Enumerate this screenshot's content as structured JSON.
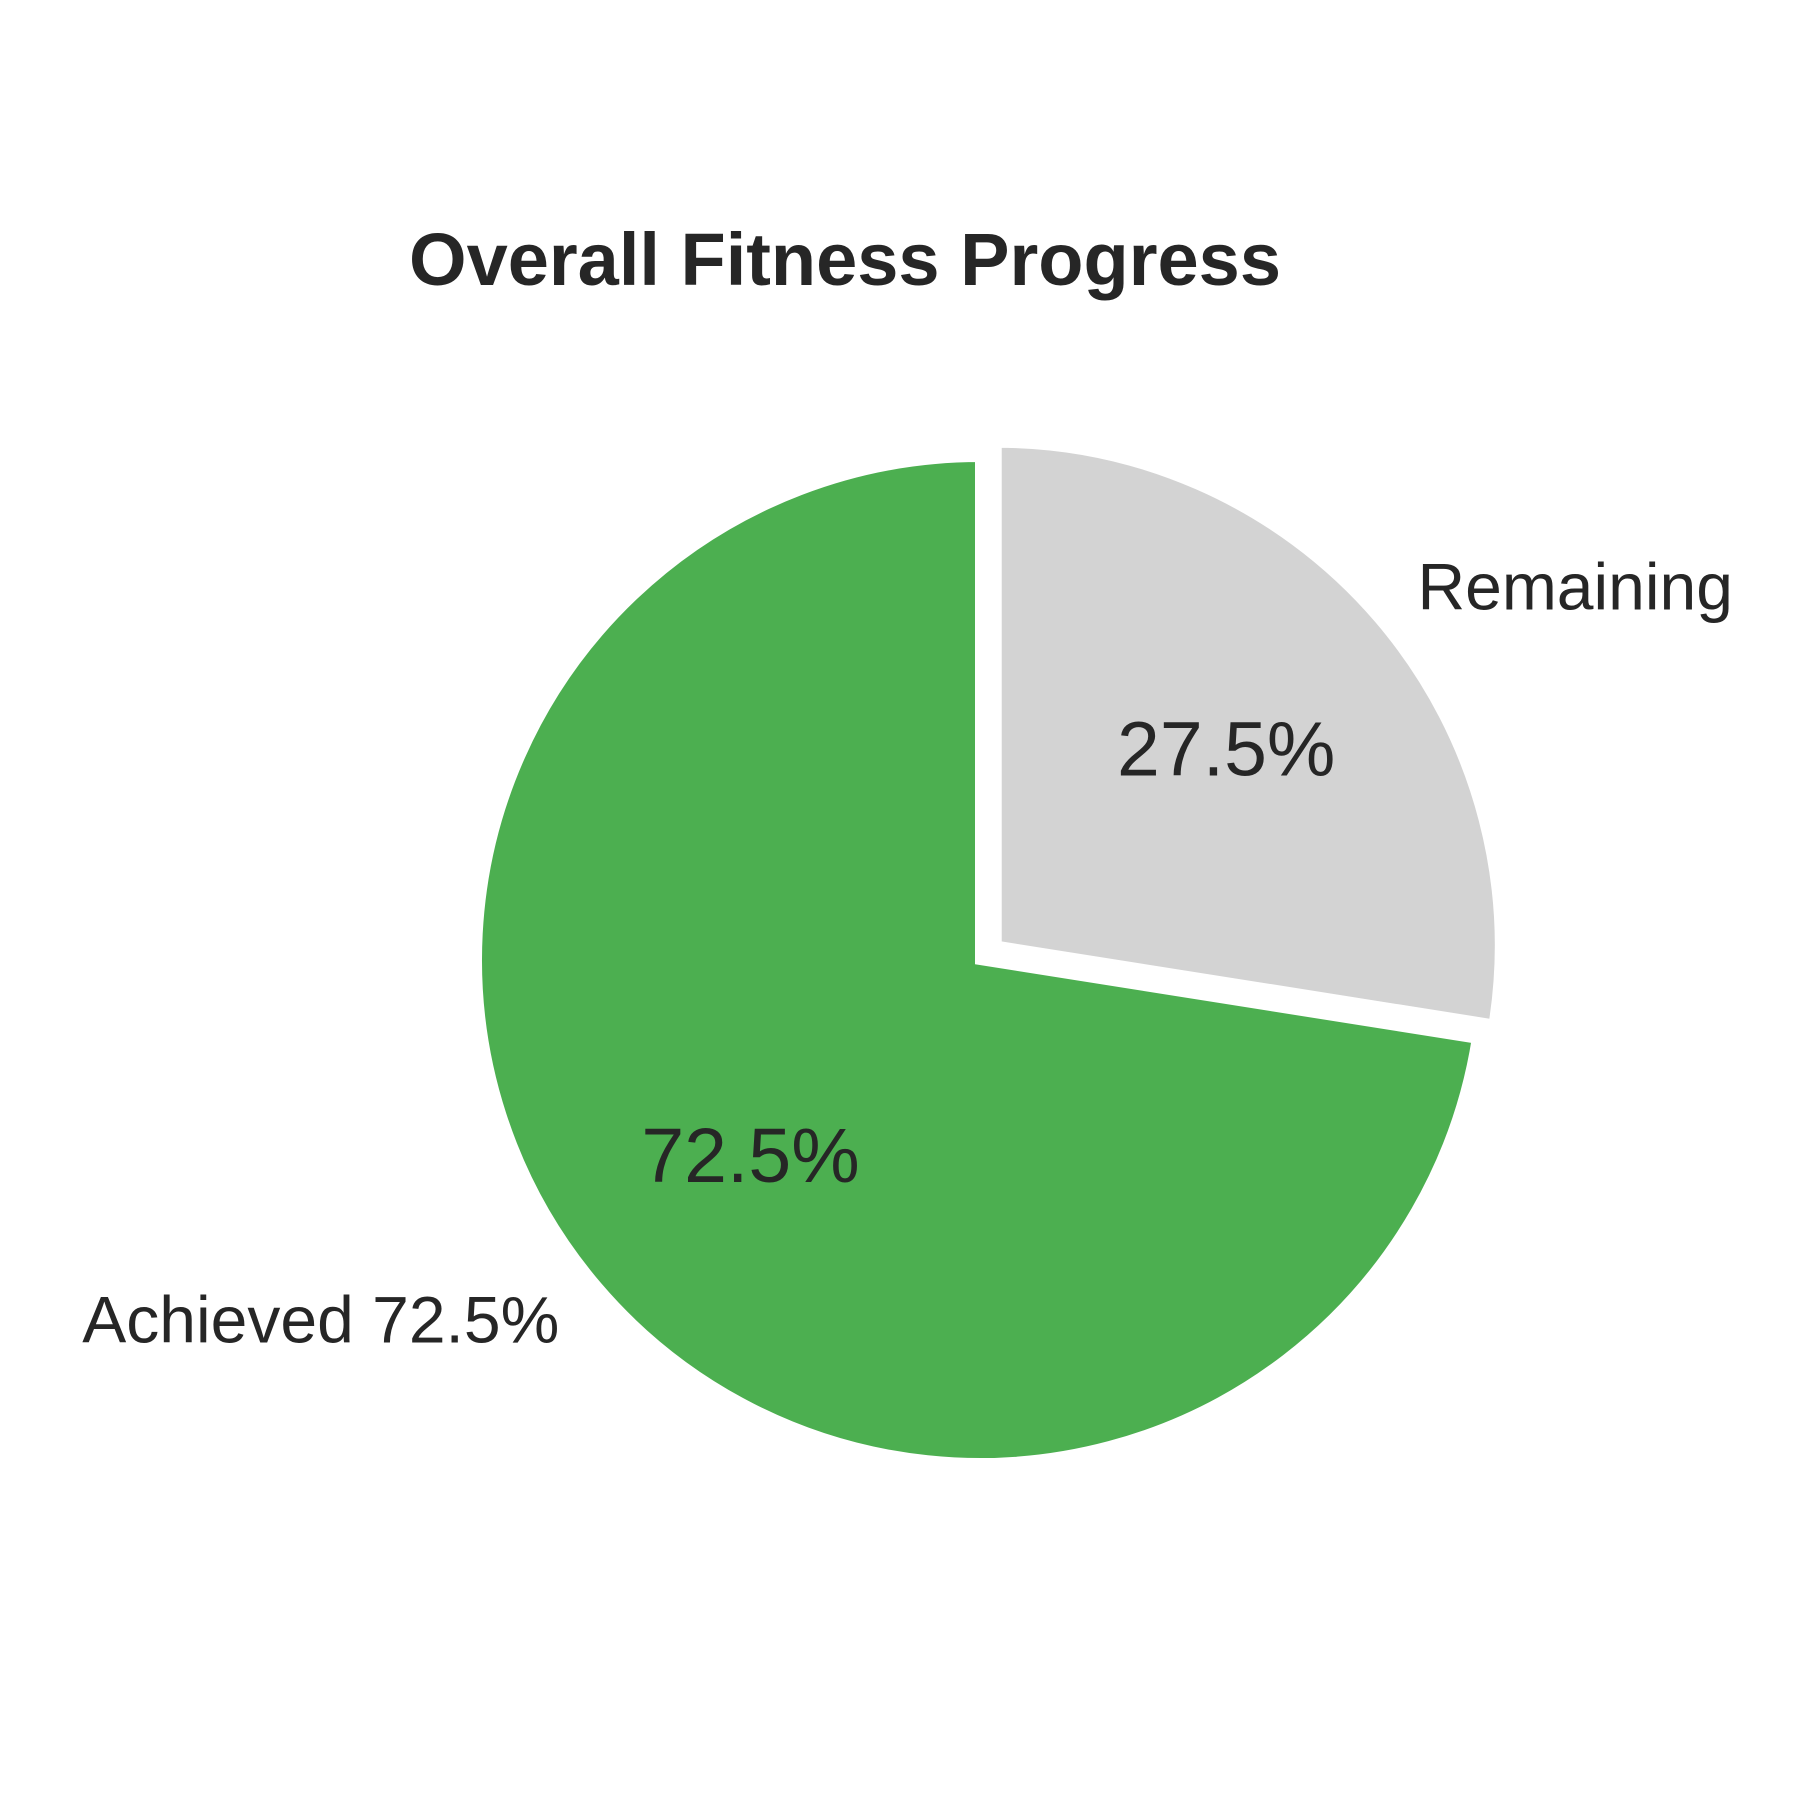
{
  "chart_data": {
    "type": "pie",
    "title": "Overall Fitness Progress",
    "slices": [
      {
        "name": "Achieved",
        "value": 72.5,
        "label": "Achieved 72.5%",
        "pct_label": "72.5%",
        "color": "#4caf50",
        "exploded": false
      },
      {
        "name": "Remaining",
        "value": 27.5,
        "label": "Remaining",
        "pct_label": "27.5%",
        "color": "#d3d3d3",
        "exploded": true
      }
    ],
    "start_angle": "top (12 o'clock)",
    "direction": "counterclockwise",
    "edge_color": "#ffffff"
  }
}
